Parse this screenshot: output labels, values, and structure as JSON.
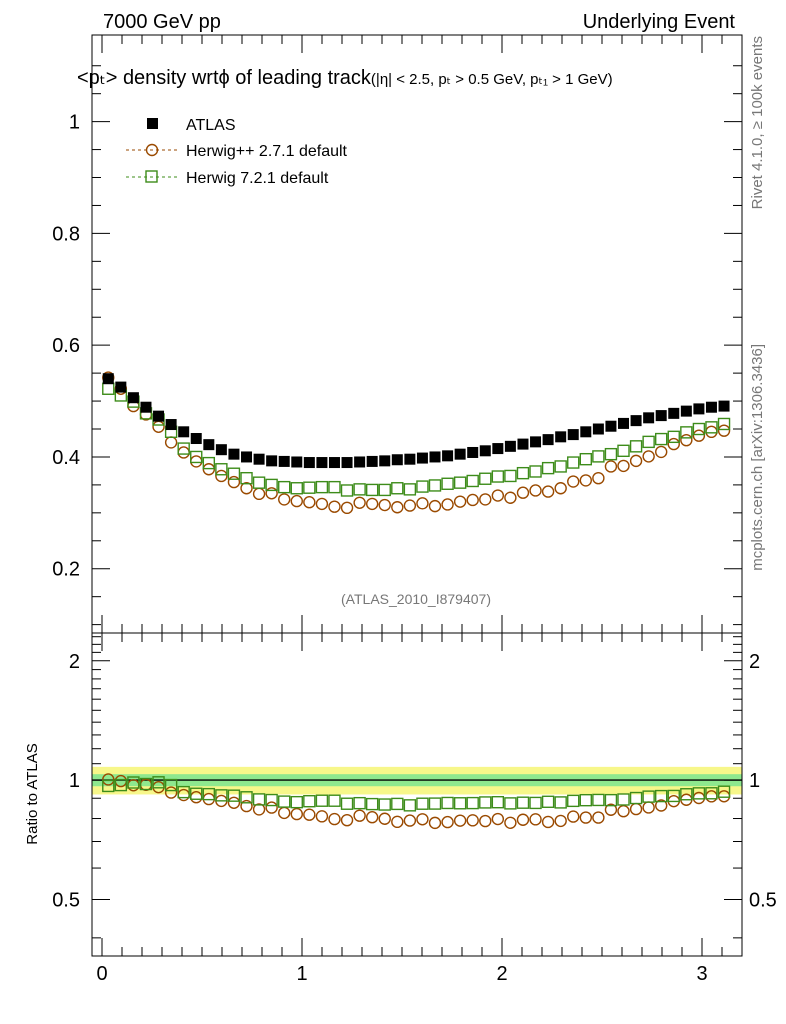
{
  "header": {
    "left": "7000 GeV pp",
    "right": "Underlying Event"
  },
  "side_labels": {
    "rivet": "Rivet 4.1.0, ≥ 100k events",
    "mcplots": "mcplots.cern.ch [arXiv:1306.3436]"
  },
  "chart_data": {
    "type": "scatter",
    "title_main": "<pₜ> density wrtϕ of leading track",
    "title_cuts": "(|η| < 2.5, pₜ > 0.5 GeV, pₜ₁ > 1 GeV)",
    "watermark": "(ATLAS_2010_I879407)",
    "xlim": [
      -0.05,
      3.2
    ],
    "ylim": [
      0.085,
      1.155
    ],
    "x_ticks": [
      {
        "v": 0,
        "label": "0"
      },
      {
        "v": 1,
        "label": "1"
      },
      {
        "v": 2,
        "label": "2"
      },
      {
        "v": 3,
        "label": "3"
      }
    ],
    "y_ticks": [
      {
        "v": 0.2,
        "label": "0.2"
      },
      {
        "v": 0.4,
        "label": "0.4"
      },
      {
        "v": 0.6,
        "label": "0.6"
      },
      {
        "v": 0.8,
        "label": "0.8"
      },
      {
        "v": 1.0,
        "label": "1"
      }
    ],
    "legend": [
      "ATLAS",
      "Herwig++ 2.7.1 default",
      "Herwig 7.2.1 default"
    ],
    "x": [
      0.0314,
      0.0942,
      0.1571,
      0.2199,
      0.2827,
      0.3456,
      0.4084,
      0.4712,
      0.5341,
      0.5969,
      0.6597,
      0.7226,
      0.7854,
      0.8482,
      0.9111,
      0.9739,
      1.0367,
      1.0996,
      1.1624,
      1.2252,
      1.2881,
      1.3509,
      1.4137,
      1.4765,
      1.5394,
      1.6022,
      1.665,
      1.7279,
      1.7907,
      1.8535,
      1.9164,
      1.9792,
      2.042,
      2.1049,
      2.1677,
      2.2305,
      2.2934,
      2.3562,
      2.419,
      2.4819,
      2.5447,
      2.6075,
      2.6704,
      2.7332,
      2.796,
      2.8588,
      2.9217,
      2.9845,
      3.0473,
      3.1102
    ],
    "series": [
      {
        "name": "ATLAS",
        "color": "#000000",
        "marker": "square-filled",
        "values": [
          0.54,
          0.525,
          0.506,
          0.489,
          0.473,
          0.458,
          0.445,
          0.433,
          0.422,
          0.413,
          0.405,
          0.4,
          0.396,
          0.393,
          0.392,
          0.391,
          0.39,
          0.39,
          0.39,
          0.39,
          0.391,
          0.392,
          0.393,
          0.395,
          0.396,
          0.398,
          0.4,
          0.402,
          0.405,
          0.408,
          0.411,
          0.415,
          0.419,
          0.423,
          0.427,
          0.431,
          0.436,
          0.44,
          0.445,
          0.45,
          0.455,
          0.46,
          0.465,
          0.47,
          0.474,
          0.478,
          0.482,
          0.486,
          0.489,
          0.491
        ]
      },
      {
        "name": "Herwig++ 2.7.1 default",
        "color": "#9a4a00",
        "marker": "circle-open",
        "values": [
          0.542,
          0.522,
          0.491,
          0.476,
          0.454,
          0.426,
          0.408,
          0.392,
          0.378,
          0.366,
          0.355,
          0.344,
          0.334,
          0.335,
          0.324,
          0.321,
          0.319,
          0.316,
          0.311,
          0.309,
          0.318,
          0.316,
          0.314,
          0.31,
          0.313,
          0.317,
          0.312,
          0.315,
          0.32,
          0.323,
          0.324,
          0.331,
          0.327,
          0.336,
          0.34,
          0.338,
          0.344,
          0.356,
          0.358,
          0.362,
          0.383,
          0.384,
          0.393,
          0.401,
          0.409,
          0.423,
          0.43,
          0.438,
          0.445,
          0.447
        ]
      },
      {
        "name": "Herwig 7.2.1 default",
        "color": "#3d8c1a",
        "marker": "square-open",
        "values": [
          0.522,
          0.51,
          0.499,
          0.478,
          0.467,
          0.445,
          0.415,
          0.4,
          0.389,
          0.378,
          0.37,
          0.362,
          0.354,
          0.35,
          0.346,
          0.344,
          0.345,
          0.346,
          0.346,
          0.34,
          0.342,
          0.341,
          0.341,
          0.344,
          0.342,
          0.347,
          0.349,
          0.352,
          0.354,
          0.357,
          0.361,
          0.365,
          0.366,
          0.371,
          0.374,
          0.38,
          0.383,
          0.39,
          0.396,
          0.401,
          0.405,
          0.411,
          0.419,
          0.427,
          0.432,
          0.436,
          0.444,
          0.45,
          0.453,
          0.459
        ]
      }
    ],
    "ratio": {
      "ylabel": "Ratio to ATLAS",
      "ylim": [
        0.36,
        2.35
      ],
      "y_ticks": [
        {
          "v": 0.5,
          "label": "0.5"
        },
        {
          "v": 1,
          "label": "1"
        },
        {
          "v": 2,
          "label": "2"
        }
      ],
      "band_inner": 0.035,
      "band_outer": 0.08,
      "band_colors": {
        "inner": "#8ee88e",
        "outer": "#f7f78a"
      }
    }
  }
}
